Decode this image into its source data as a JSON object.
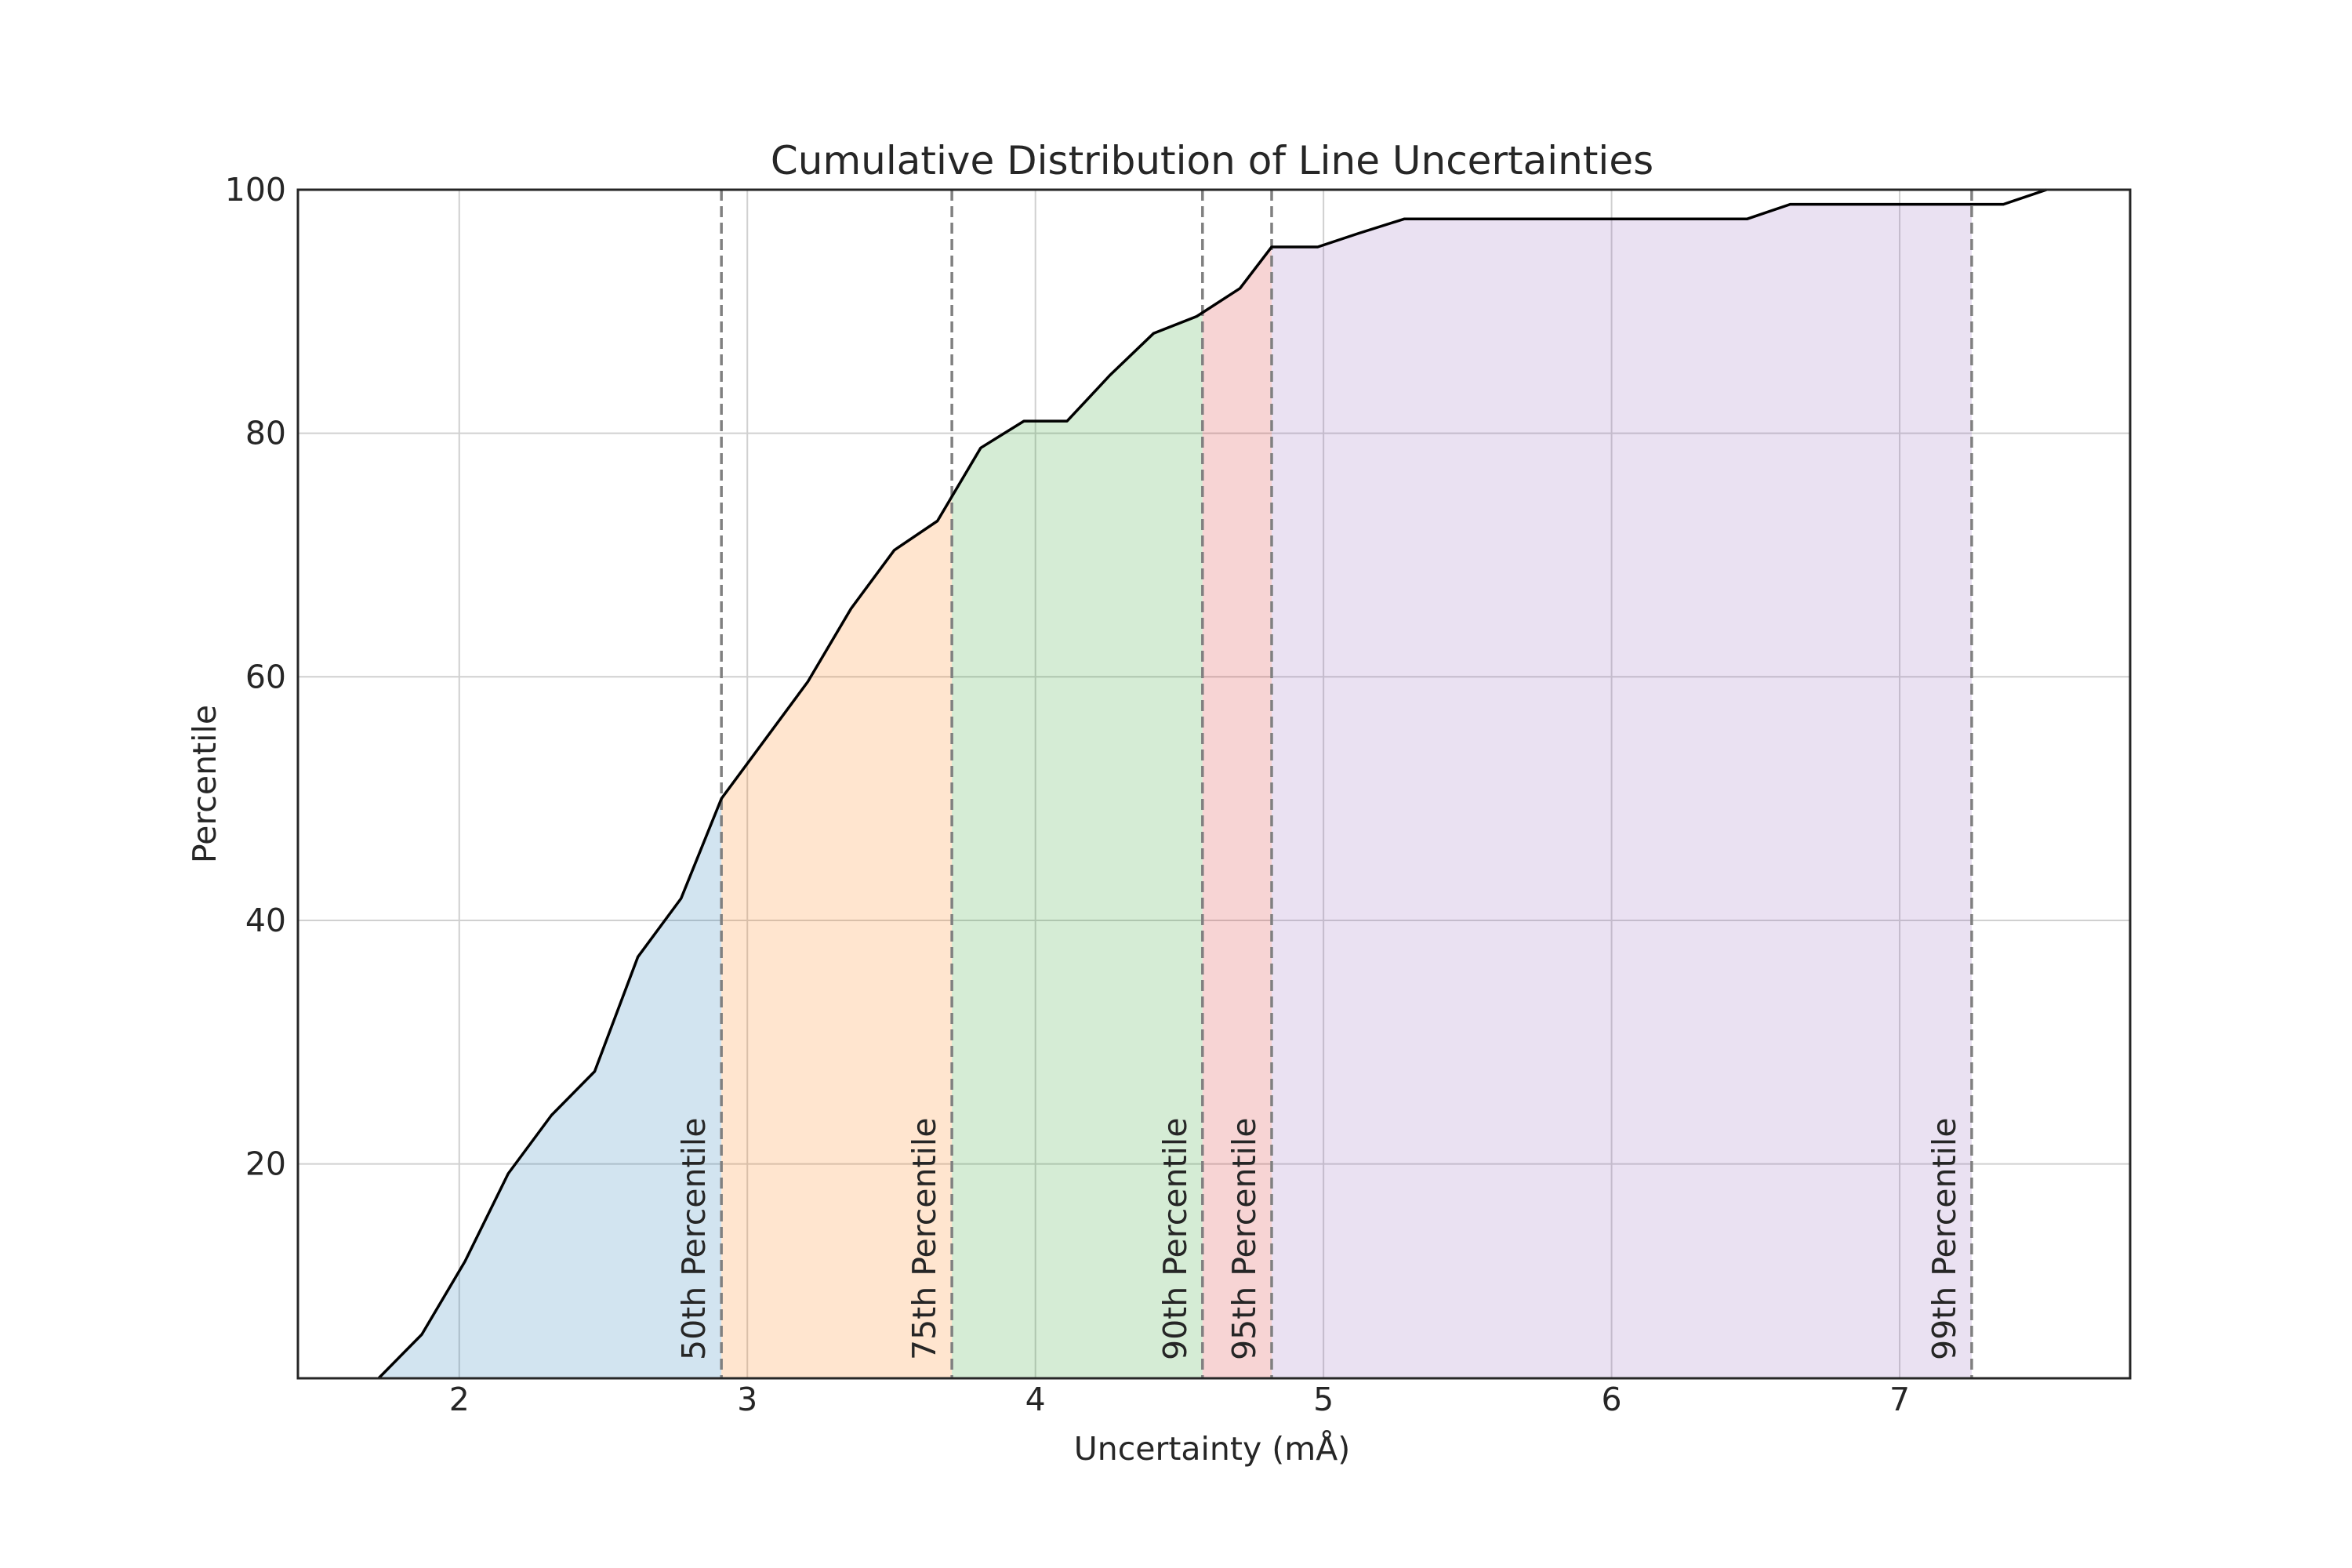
{
  "chart_data": {
    "type": "area",
    "title": "Cumulative Distribution of Line Uncertainties",
    "xlabel": "Uncertainty (mÅ)",
    "ylabel": "Percentile",
    "xlim": [
      1.44,
      7.8
    ],
    "ylim": [
      2.4,
      100
    ],
    "x_ticks": [
      2,
      3,
      4,
      5,
      6,
      7
    ],
    "y_ticks": [
      20,
      40,
      60,
      80,
      100
    ],
    "grid": true,
    "curve": {
      "x": [
        1.72,
        1.87,
        2.02,
        2.17,
        2.32,
        2.47,
        2.62,
        2.77,
        2.91,
        3.06,
        3.21,
        3.36,
        3.51,
        3.66,
        3.81,
        3.96,
        4.11,
        4.26,
        4.41,
        4.56,
        4.71,
        4.82,
        4.98,
        5.12,
        5.28,
        5.5,
        6.0,
        6.47,
        6.62,
        7.0,
        7.36,
        7.51
      ],
      "y": [
        2.4,
        6.0,
        12.0,
        19.2,
        24.0,
        27.6,
        37.0,
        41.8,
        50.0,
        54.8,
        59.6,
        65.6,
        70.4,
        72.8,
        78.8,
        81.0,
        81.0,
        84.8,
        88.2,
        89.6,
        91.9,
        95.3,
        95.3,
        96.4,
        97.6,
        97.6,
        97.6,
        97.6,
        98.8,
        98.8,
        98.8,
        100.0
      ]
    },
    "percentiles": [
      {
        "label": "50th Percentile",
        "x": 2.91,
        "color": "#1f77b4"
      },
      {
        "label": "75th Percentile",
        "x": 3.71,
        "color": "#ff7f0e"
      },
      {
        "label": "90th Percentile",
        "x": 4.58,
        "color": "#2ca02c"
      },
      {
        "label": "95th Percentile",
        "x": 4.82,
        "color": "#d62728"
      },
      {
        "label": "99th Percentile",
        "x": 7.25,
        "color": "#9467bd"
      }
    ],
    "band_opacity": 0.2,
    "line_color": "#000000",
    "percentile_line_color": "#808080"
  }
}
